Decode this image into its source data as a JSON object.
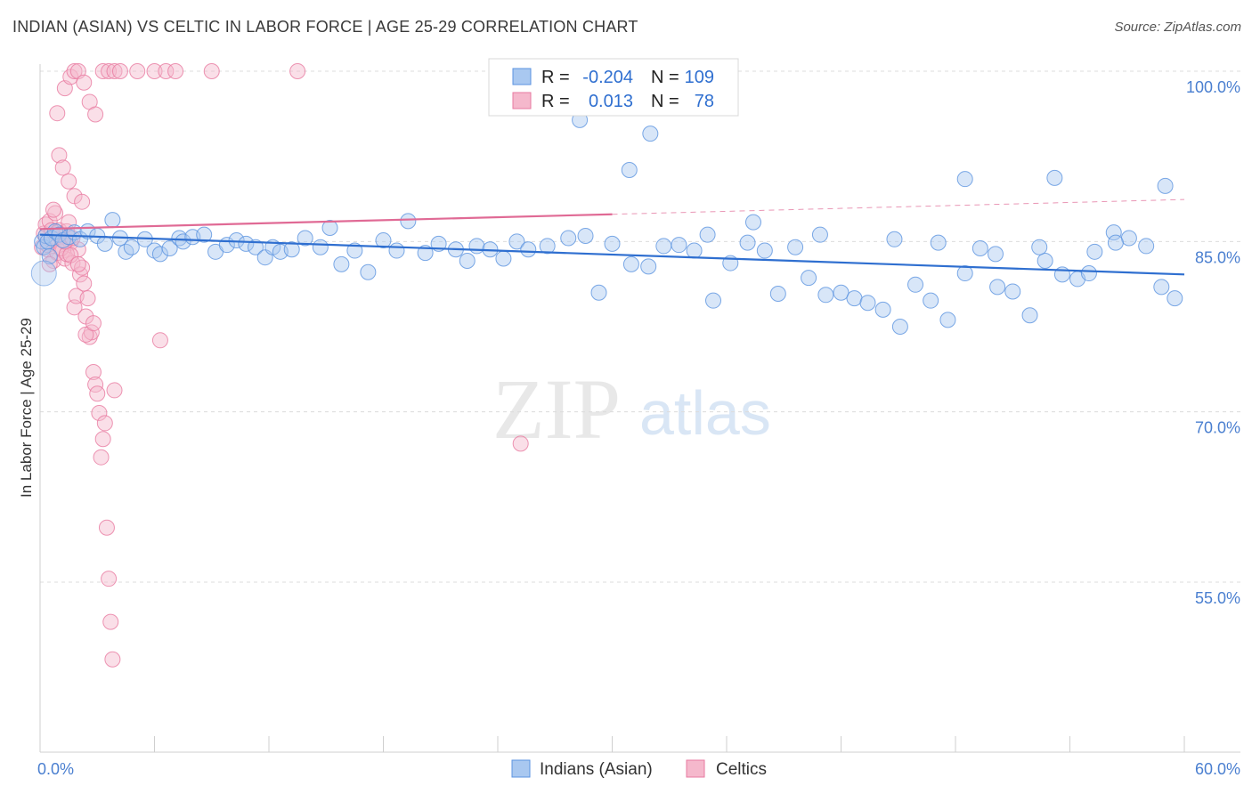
{
  "title": "INDIAN (ASIAN) VS CELTIC IN LABOR FORCE | AGE 25-29 CORRELATION CHART",
  "source": "Source: ZipAtlas.com",
  "watermark": {
    "zip": "ZIP",
    "atlas": "atlas"
  },
  "colors": {
    "blue": "#5b93e0",
    "blue_fill": "#a9c8f0",
    "blue_line": "#2f6fd0",
    "pink": "#e87aa0",
    "pink_fill": "#f5b8cc",
    "pink_line": "#e06a95",
    "tick_text": "#4a7fd0",
    "grid": "#dcdcdc"
  },
  "legend": {
    "rows": [
      {
        "r_label": "R =",
        "r_value": "-0.204",
        "n_label": "N =",
        "n_value": "109"
      },
      {
        "r_label": "R =",
        "r_value": "0.013",
        "n_label": "N =",
        "n_value": "78"
      }
    ]
  },
  "bottom_legend": [
    "Indians (Asian)",
    "Celtics"
  ],
  "chart_data": {
    "type": "scatter",
    "title": "INDIAN (ASIAN) VS CELTIC IN LABOR FORCE | AGE 25-29 CORRELATION CHART",
    "xlabel": "",
    "ylabel": "In Labor Force | Age 25-29",
    "xlim": [
      0,
      60
    ],
    "ylim": [
      40,
      101.5
    ],
    "x_tick_labels": [
      "0.0%",
      "60.0%"
    ],
    "y_ticks": [
      55,
      70,
      85,
      100
    ],
    "y_tick_labels": [
      "55.0%",
      "70.0%",
      "85.0%",
      "100.0%"
    ],
    "grid": true,
    "series": [
      {
        "name": "Indians (Asian)",
        "R": -0.204,
        "N": 109,
        "trend": {
          "x": [
            0,
            60
          ],
          "y": [
            85.6,
            82.1
          ]
        },
        "points": [
          [
            0.1,
            85.0
          ],
          [
            0.2,
            84.5
          ],
          [
            0.3,
            85.5
          ],
          [
            0.4,
            85.0
          ],
          [
            0.5,
            83.7
          ],
          [
            0.6,
            85.3
          ],
          [
            0.8,
            85.9
          ],
          [
            1.0,
            85.6
          ],
          [
            1.2,
            85.1
          ],
          [
            1.5,
            85.4
          ],
          [
            1.8,
            85.8
          ],
          [
            2.1,
            85.2
          ],
          [
            2.5,
            85.9
          ],
          [
            3.0,
            85.5
          ],
          [
            3.4,
            84.8
          ],
          [
            3.8,
            86.9
          ],
          [
            4.2,
            85.3
          ],
          [
            4.5,
            84.1
          ],
          [
            4.8,
            84.5
          ],
          [
            5.5,
            85.2
          ],
          [
            6.0,
            84.2
          ],
          [
            6.3,
            83.9
          ],
          [
            6.8,
            84.4
          ],
          [
            7.3,
            85.3
          ],
          [
            7.5,
            85.0
          ],
          [
            8.0,
            85.4
          ],
          [
            8.6,
            85.6
          ],
          [
            9.2,
            84.1
          ],
          [
            9.8,
            84.7
          ],
          [
            10.3,
            85.1
          ],
          [
            10.8,
            84.8
          ],
          [
            11.3,
            84.5
          ],
          [
            11.8,
            83.6
          ],
          [
            12.2,
            84.5
          ],
          [
            12.6,
            84.1
          ],
          [
            13.2,
            84.3
          ],
          [
            13.9,
            85.3
          ],
          [
            14.7,
            84.5
          ],
          [
            15.2,
            86.2
          ],
          [
            15.8,
            83.0
          ],
          [
            16.5,
            84.2
          ],
          [
            17.2,
            82.3
          ],
          [
            18.0,
            85.1
          ],
          [
            18.7,
            84.2
          ],
          [
            19.3,
            86.8
          ],
          [
            20.2,
            84.0
          ],
          [
            20.9,
            84.8
          ],
          [
            21.8,
            84.3
          ],
          [
            22.4,
            83.3
          ],
          [
            22.9,
            84.6
          ],
          [
            23.6,
            84.3
          ],
          [
            24.3,
            83.5
          ],
          [
            25.0,
            85.0
          ],
          [
            25.6,
            84.3
          ],
          [
            26.6,
            84.6
          ],
          [
            27.7,
            85.3
          ],
          [
            28.6,
            85.5
          ],
          [
            29.3,
            80.5
          ],
          [
            30.0,
            84.8
          ],
          [
            31.0,
            83.0
          ],
          [
            31.9,
            82.8
          ],
          [
            32.7,
            84.6
          ],
          [
            33.5,
            84.7
          ],
          [
            34.3,
            84.2
          ],
          [
            35.0,
            85.6
          ],
          [
            35.3,
            79.8
          ],
          [
            36.2,
            83.1
          ],
          [
            37.1,
            84.9
          ],
          [
            38.0,
            84.2
          ],
          [
            38.7,
            80.4
          ],
          [
            39.6,
            84.5
          ],
          [
            40.3,
            81.8
          ],
          [
            41.2,
            80.3
          ],
          [
            42.0,
            80.5
          ],
          [
            42.7,
            80.0
          ],
          [
            43.4,
            79.6
          ],
          [
            44.2,
            79.0
          ],
          [
            45.1,
            77.5
          ],
          [
            45.9,
            81.2
          ],
          [
            46.7,
            79.8
          ],
          [
            47.6,
            78.1
          ],
          [
            48.5,
            82.2
          ],
          [
            49.3,
            84.4
          ],
          [
            50.2,
            81.0
          ],
          [
            51.0,
            80.6
          ],
          [
            51.9,
            78.5
          ],
          [
            52.7,
            83.3
          ],
          [
            53.6,
            82.1
          ],
          [
            54.4,
            81.7
          ],
          [
            55.3,
            84.1
          ],
          [
            56.3,
            85.8
          ],
          [
            57.1,
            85.3
          ],
          [
            58.0,
            84.6
          ],
          [
            58.8,
            81.0
          ],
          [
            59.5,
            80.0
          ],
          [
            28.3,
            95.7
          ],
          [
            32.0,
            94.5
          ],
          [
            30.9,
            91.3
          ],
          [
            48.5,
            90.5
          ],
          [
            53.2,
            90.6
          ],
          [
            59.0,
            89.9
          ],
          [
            37.4,
            86.7
          ],
          [
            40.9,
            85.6
          ],
          [
            44.8,
            85.2
          ],
          [
            47.1,
            84.9
          ],
          [
            50.1,
            83.9
          ],
          [
            52.4,
            84.5
          ],
          [
            55.0,
            82.2
          ],
          [
            56.4,
            84.9
          ]
        ]
      },
      {
        "name": "Celtics",
        "R": 0.013,
        "N": 78,
        "trend": {
          "x": [
            0,
            30
          ],
          "y": [
            86.1,
            87.4
          ]
        },
        "trend_dashed": {
          "x": [
            30,
            60
          ],
          "y": [
            87.4,
            88.7
          ]
        },
        "points": [
          [
            0.1,
            84.5
          ],
          [
            0.2,
            85.7
          ],
          [
            0.3,
            86.5
          ],
          [
            0.4,
            84.3
          ],
          [
            0.5,
            86.8
          ],
          [
            0.6,
            85.1
          ],
          [
            0.7,
            83.3
          ],
          [
            0.8,
            87.5
          ],
          [
            0.9,
            84.0
          ],
          [
            1.0,
            86.0
          ],
          [
            1.1,
            85.4
          ],
          [
            1.2,
            84.2
          ],
          [
            1.3,
            83.5
          ],
          [
            1.4,
            85.9
          ],
          [
            1.5,
            86.7
          ],
          [
            1.6,
            84.9
          ],
          [
            1.7,
            83.1
          ],
          [
            1.8,
            79.2
          ],
          [
            1.9,
            80.2
          ],
          [
            2.0,
            84.3
          ],
          [
            2.1,
            82.1
          ],
          [
            2.2,
            82.7
          ],
          [
            2.3,
            81.3
          ],
          [
            2.4,
            78.4
          ],
          [
            2.5,
            80.0
          ],
          [
            2.6,
            76.6
          ],
          [
            2.7,
            77.0
          ],
          [
            2.8,
            73.5
          ],
          [
            2.9,
            72.4
          ],
          [
            3.0,
            71.6
          ],
          [
            3.1,
            69.9
          ],
          [
            3.2,
            66.0
          ],
          [
            3.3,
            67.6
          ],
          [
            3.4,
            69.0
          ],
          [
            3.5,
            59.8
          ],
          [
            3.6,
            55.3
          ],
          [
            3.7,
            51.5
          ],
          [
            3.8,
            48.2
          ],
          [
            0.9,
            96.3
          ],
          [
            1.3,
            98.5
          ],
          [
            1.6,
            99.5
          ],
          [
            1.8,
            100.0
          ],
          [
            2.0,
            100.0
          ],
          [
            2.3,
            99.0
          ],
          [
            2.6,
            97.3
          ],
          [
            2.9,
            96.2
          ],
          [
            3.3,
            100.0
          ],
          [
            3.6,
            100.0
          ],
          [
            3.9,
            100.0
          ],
          [
            4.2,
            100.0
          ],
          [
            5.1,
            100.0
          ],
          [
            6.0,
            100.0
          ],
          [
            6.6,
            100.0
          ],
          [
            7.1,
            100.0
          ],
          [
            9.0,
            100.0
          ],
          [
            13.5,
            100.0
          ],
          [
            1.0,
            92.6
          ],
          [
            1.2,
            91.5
          ],
          [
            1.5,
            90.3
          ],
          [
            1.8,
            89.0
          ],
          [
            2.2,
            88.5
          ],
          [
            0.7,
            87.8
          ],
          [
            0.5,
            83.0
          ],
          [
            0.4,
            84.7
          ],
          [
            0.3,
            85.5
          ],
          [
            0.6,
            86.0
          ],
          [
            1.1,
            84.4
          ],
          [
            1.4,
            83.9
          ],
          [
            1.6,
            83.8
          ],
          [
            2.0,
            83.0
          ],
          [
            1.3,
            85.0
          ],
          [
            0.9,
            85.8
          ],
          [
            1.7,
            85.3
          ],
          [
            2.4,
            76.8
          ],
          [
            2.8,
            77.8
          ],
          [
            3.9,
            71.9
          ],
          [
            6.3,
            76.3
          ],
          [
            25.2,
            67.2
          ]
        ]
      }
    ]
  }
}
